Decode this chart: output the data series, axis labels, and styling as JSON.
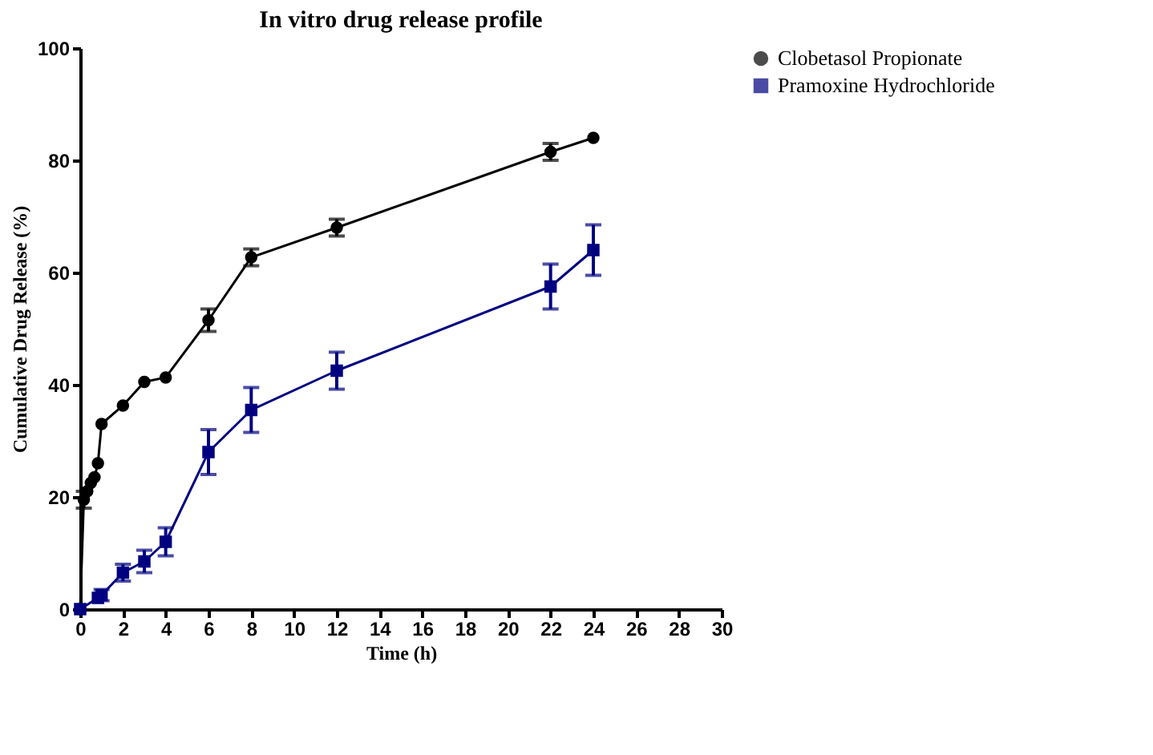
{
  "chart_data": {
    "type": "line",
    "title": "In vitro drug release profile",
    "xlabel": "Time (h)",
    "ylabel": "Cumulative Drug Release  (%)",
    "xlim": [
      0,
      30
    ],
    "xticks": [
      0,
      2,
      4,
      6,
      8,
      10,
      12,
      14,
      16,
      18,
      20,
      22,
      24,
      26,
      28,
      30
    ],
    "ylim": [
      0,
      100
    ],
    "yticks": [
      0,
      20,
      40,
      60,
      80,
      100
    ],
    "grid": false,
    "legend": "top right",
    "line_style": "solid",
    "series": [
      {
        "name": "Clobetasol Propionate",
        "color": "#000000",
        "marker": "circle",
        "x": [
          0,
          0.17,
          0.33,
          0.5,
          0.67,
          0.83,
          1,
          2,
          3,
          4,
          6,
          8,
          12,
          22,
          24
        ],
        "values": [
          0,
          19.5,
          21,
          22.5,
          23.5,
          26,
          33,
          36.3,
          40.5,
          41.3,
          51.5,
          62.7,
          68,
          81.5,
          84
        ],
        "errors": [
          null,
          1.5,
          null,
          null,
          null,
          null,
          null,
          null,
          null,
          null,
          2,
          1.5,
          1.5,
          1.5,
          null
        ]
      },
      {
        "name": "Pramoxine Hydrochloride",
        "color": "#000080",
        "marker": "square",
        "x": [
          0,
          0.17,
          0.33,
          0.5,
          0.67,
          0.83,
          1,
          2,
          3,
          4,
          6,
          8,
          12,
          22,
          24
        ],
        "values": [
          0,
          null,
          null,
          null,
          null,
          2,
          2.5,
          6.5,
          8.5,
          12,
          28,
          35.5,
          42.5,
          57.5,
          64
        ],
        "errors": [
          null,
          null,
          null,
          null,
          null,
          null,
          1,
          1.5,
          2,
          2.5,
          4,
          4,
          3.3,
          4,
          4.5
        ]
      }
    ]
  }
}
